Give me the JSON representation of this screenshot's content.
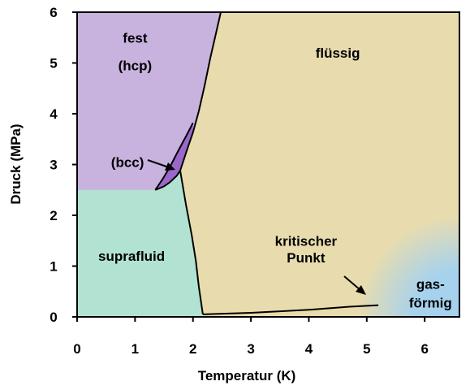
{
  "chart_data": {
    "type": "phase-diagram",
    "xlabel": "Temperatur (K)",
    "ylabel": "Druck (MPa)",
    "xlim": [
      0,
      6.6
    ],
    "ylim": [
      0,
      6
    ],
    "xticks": [
      0,
      1,
      2,
      3,
      4,
      5,
      6
    ],
    "yticks": [
      0,
      1,
      2,
      3,
      4,
      5,
      6
    ],
    "colors": {
      "solid_hcp": "#c8b2de",
      "solid_bcc": "#9a68c8",
      "liquid": "#e8dcae",
      "superfluid": "#b2e2d2",
      "gas": "#a6d2ee"
    },
    "regions": [
      {
        "key": "fest_l1",
        "label": "fest",
        "at": [
          1.0,
          5.5
        ]
      },
      {
        "key": "fest_l2",
        "label": "(hcp)",
        "at": [
          1.0,
          4.95
        ]
      },
      {
        "key": "flussig",
        "label": "flüssig",
        "at": [
          4.5,
          5.2
        ]
      },
      {
        "key": "bcc",
        "label": "(bcc)",
        "at": [
          0.87,
          3.05
        ]
      },
      {
        "key": "suprafluid",
        "label": "suprafluid",
        "at": [
          0.94,
          1.2
        ]
      },
      {
        "key": "kritisch_l1",
        "label": "kritischer",
        "at": [
          3.95,
          1.5
        ]
      },
      {
        "key": "kritisch_l2",
        "label": "Punkt",
        "at": [
          3.95,
          1.17
        ]
      },
      {
        "key": "gas_l1",
        "label": "gas-",
        "at": [
          6.1,
          0.65
        ]
      },
      {
        "key": "gas_l2",
        "label": "förmig",
        "at": [
          6.1,
          0.28
        ]
      }
    ],
    "boundaries": {
      "melting_hcp_liquid": [
        [
          1.78,
          2.88
        ],
        [
          1.9,
          3.3
        ],
        [
          2.0,
          3.63
        ],
        [
          2.1,
          4.05
        ],
        [
          2.2,
          4.55
        ],
        [
          2.3,
          5.1
        ],
        [
          2.4,
          5.6
        ],
        [
          2.48,
          6.0
        ]
      ],
      "hcp_superfluid": [
        [
          0.0,
          2.5
        ],
        [
          1.35,
          2.5
        ],
        [
          1.5,
          2.57
        ],
        [
          1.6,
          2.65
        ],
        [
          1.72,
          2.78
        ],
        [
          1.78,
          2.88
        ]
      ],
      "hcp_bcc": [
        [
          1.35,
          2.5
        ],
        [
          1.48,
          2.72
        ],
        [
          1.6,
          2.95
        ],
        [
          1.75,
          3.28
        ],
        [
          1.9,
          3.6
        ],
        [
          2.0,
          3.82
        ]
      ],
      "lambda_line": [
        [
          1.78,
          2.88
        ],
        [
          1.88,
          2.2
        ],
        [
          1.98,
          1.6
        ],
        [
          2.05,
          1.1
        ],
        [
          2.1,
          0.6
        ],
        [
          2.17,
          0.05
        ]
      ],
      "vaporization": [
        [
          2.17,
          0.05
        ],
        [
          3.0,
          0.08
        ],
        [
          4.0,
          0.14
        ],
        [
          4.7,
          0.2
        ],
        [
          5.2,
          0.23
        ]
      ]
    },
    "critical_point": [
      5.2,
      0.23
    ]
  }
}
